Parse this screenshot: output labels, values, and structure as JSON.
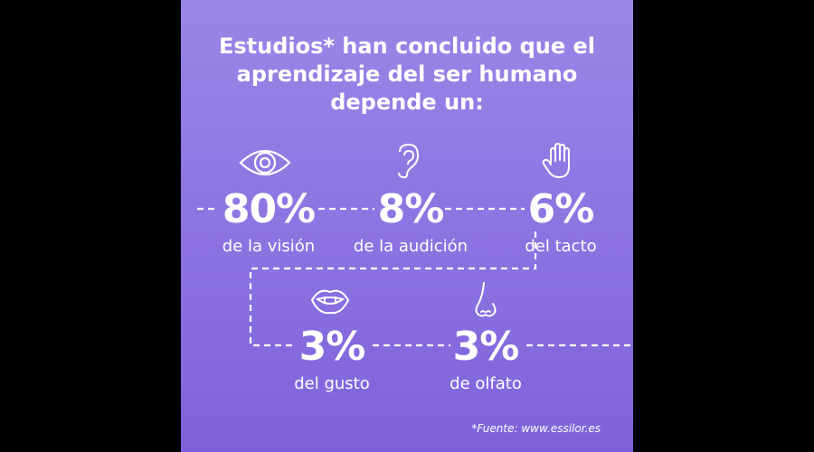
{
  "title": {
    "line1": "Estudios* han concluido que el",
    "line2": "aprendizaje del ser humano",
    "line3": "depende un:"
  },
  "senses": [
    {
      "percent": "80%",
      "label": "de la visión",
      "icon": "eye-icon"
    },
    {
      "percent": "8%",
      "label": "de la audición",
      "icon": "ear-icon"
    },
    {
      "percent": "6%",
      "label": "del tacto",
      "icon": "hand-icon"
    },
    {
      "percent": "3%",
      "label": "del gusto",
      "icon": "mouth-icon"
    },
    {
      "percent": "3%",
      "label": "de olfato",
      "icon": "nose-icon"
    }
  ],
  "source": "*Fuente: www.essilor.es",
  "colors": {
    "background_top": "#9b86e6",
    "background_bottom": "#7f62db",
    "text": "#ffffff",
    "frame": "#000000"
  }
}
